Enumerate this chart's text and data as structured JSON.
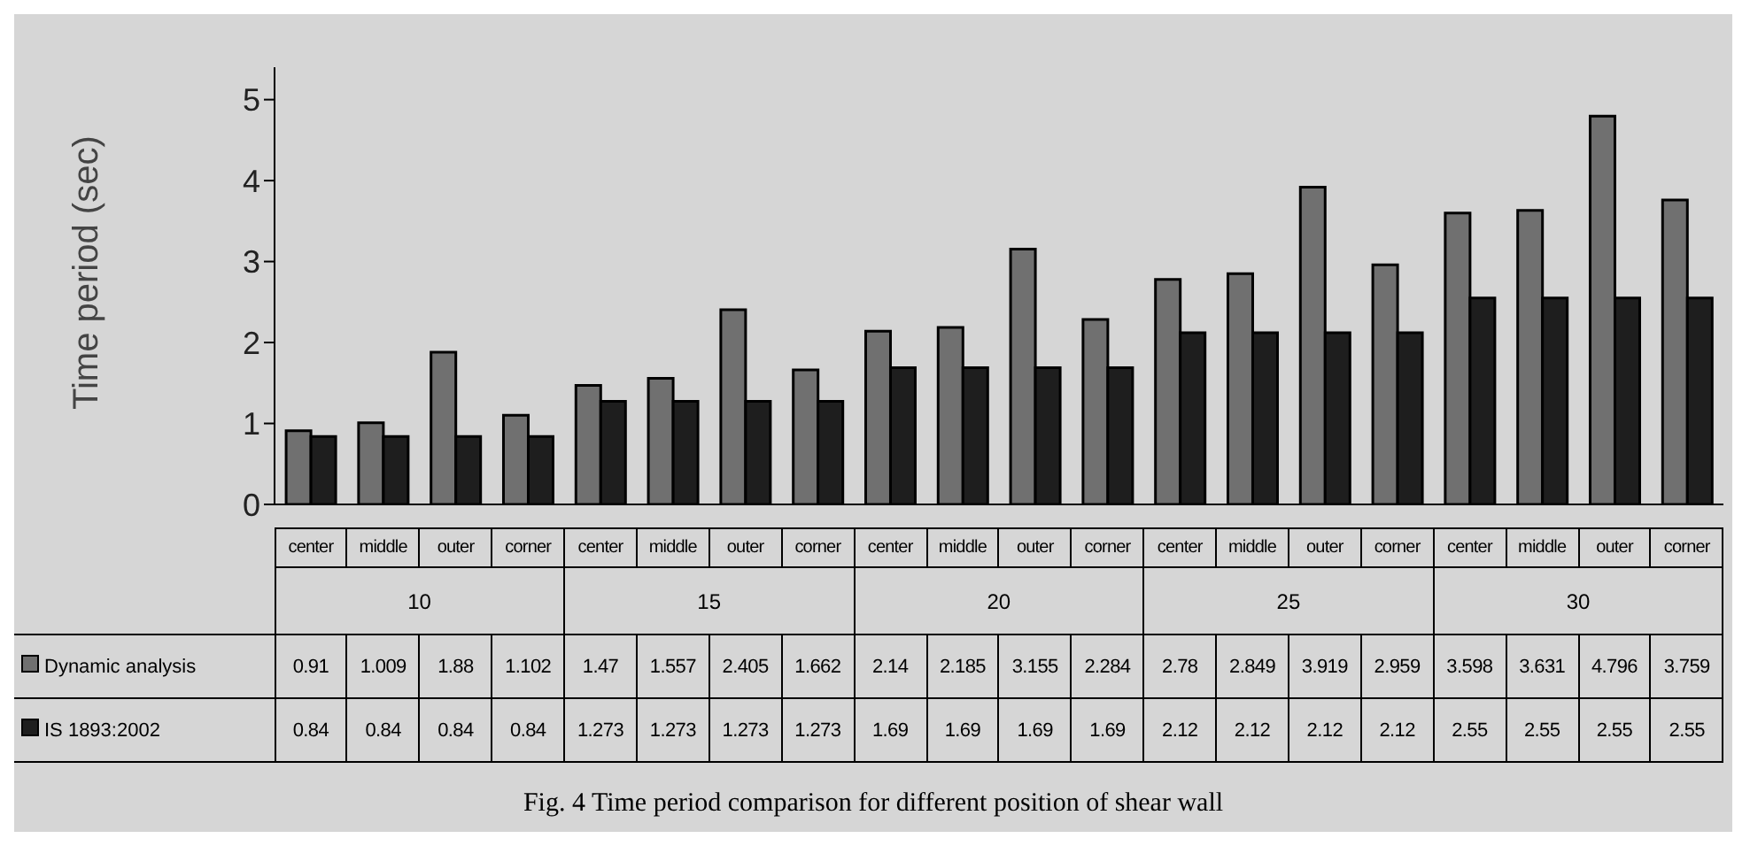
{
  "chart_data": {
    "type": "bar",
    "ylabel": "Time period (sec)",
    "categories": [
      "center",
      "middle",
      "outer",
      "corner",
      "center",
      "middle",
      "outer",
      "corner",
      "center",
      "middle",
      "outer",
      "corner",
      "center",
      "middle",
      "outer",
      "corner",
      "center",
      "middle",
      "outer",
      "corner"
    ],
    "series": [
      {
        "name": "Dynamic analysis",
        "color": "#707070",
        "values": [
          0.91,
          1.009,
          1.88,
          1.102,
          1.47,
          1.557,
          2.405,
          1.662,
          2.14,
          2.185,
          3.155,
          2.284,
          2.78,
          2.849,
          3.919,
          2.959,
          3.598,
          3.631,
          4.796,
          3.759
        ]
      },
      {
        "name": "IS 1893:2002",
        "color": "#1e1e1e",
        "values": [
          0.84,
          0.84,
          0.84,
          0.84,
          1.273,
          1.273,
          1.273,
          1.273,
          1.69,
          1.69,
          1.69,
          1.69,
          2.12,
          2.12,
          2.12,
          2.12,
          2.55,
          2.55,
          2.55,
          2.55
        ]
      }
    ],
    "ylim": [
      0,
      5.4
    ],
    "yticks": [
      0,
      1,
      2,
      3,
      4,
      5
    ],
    "grid": false,
    "legend": "bottom",
    "data_labels": true,
    "annotations": [
      "10",
      "15",
      "20",
      "25",
      "30",
      "Fig. 4 Time period comparison for different position of shear wall"
    ]
  }
}
